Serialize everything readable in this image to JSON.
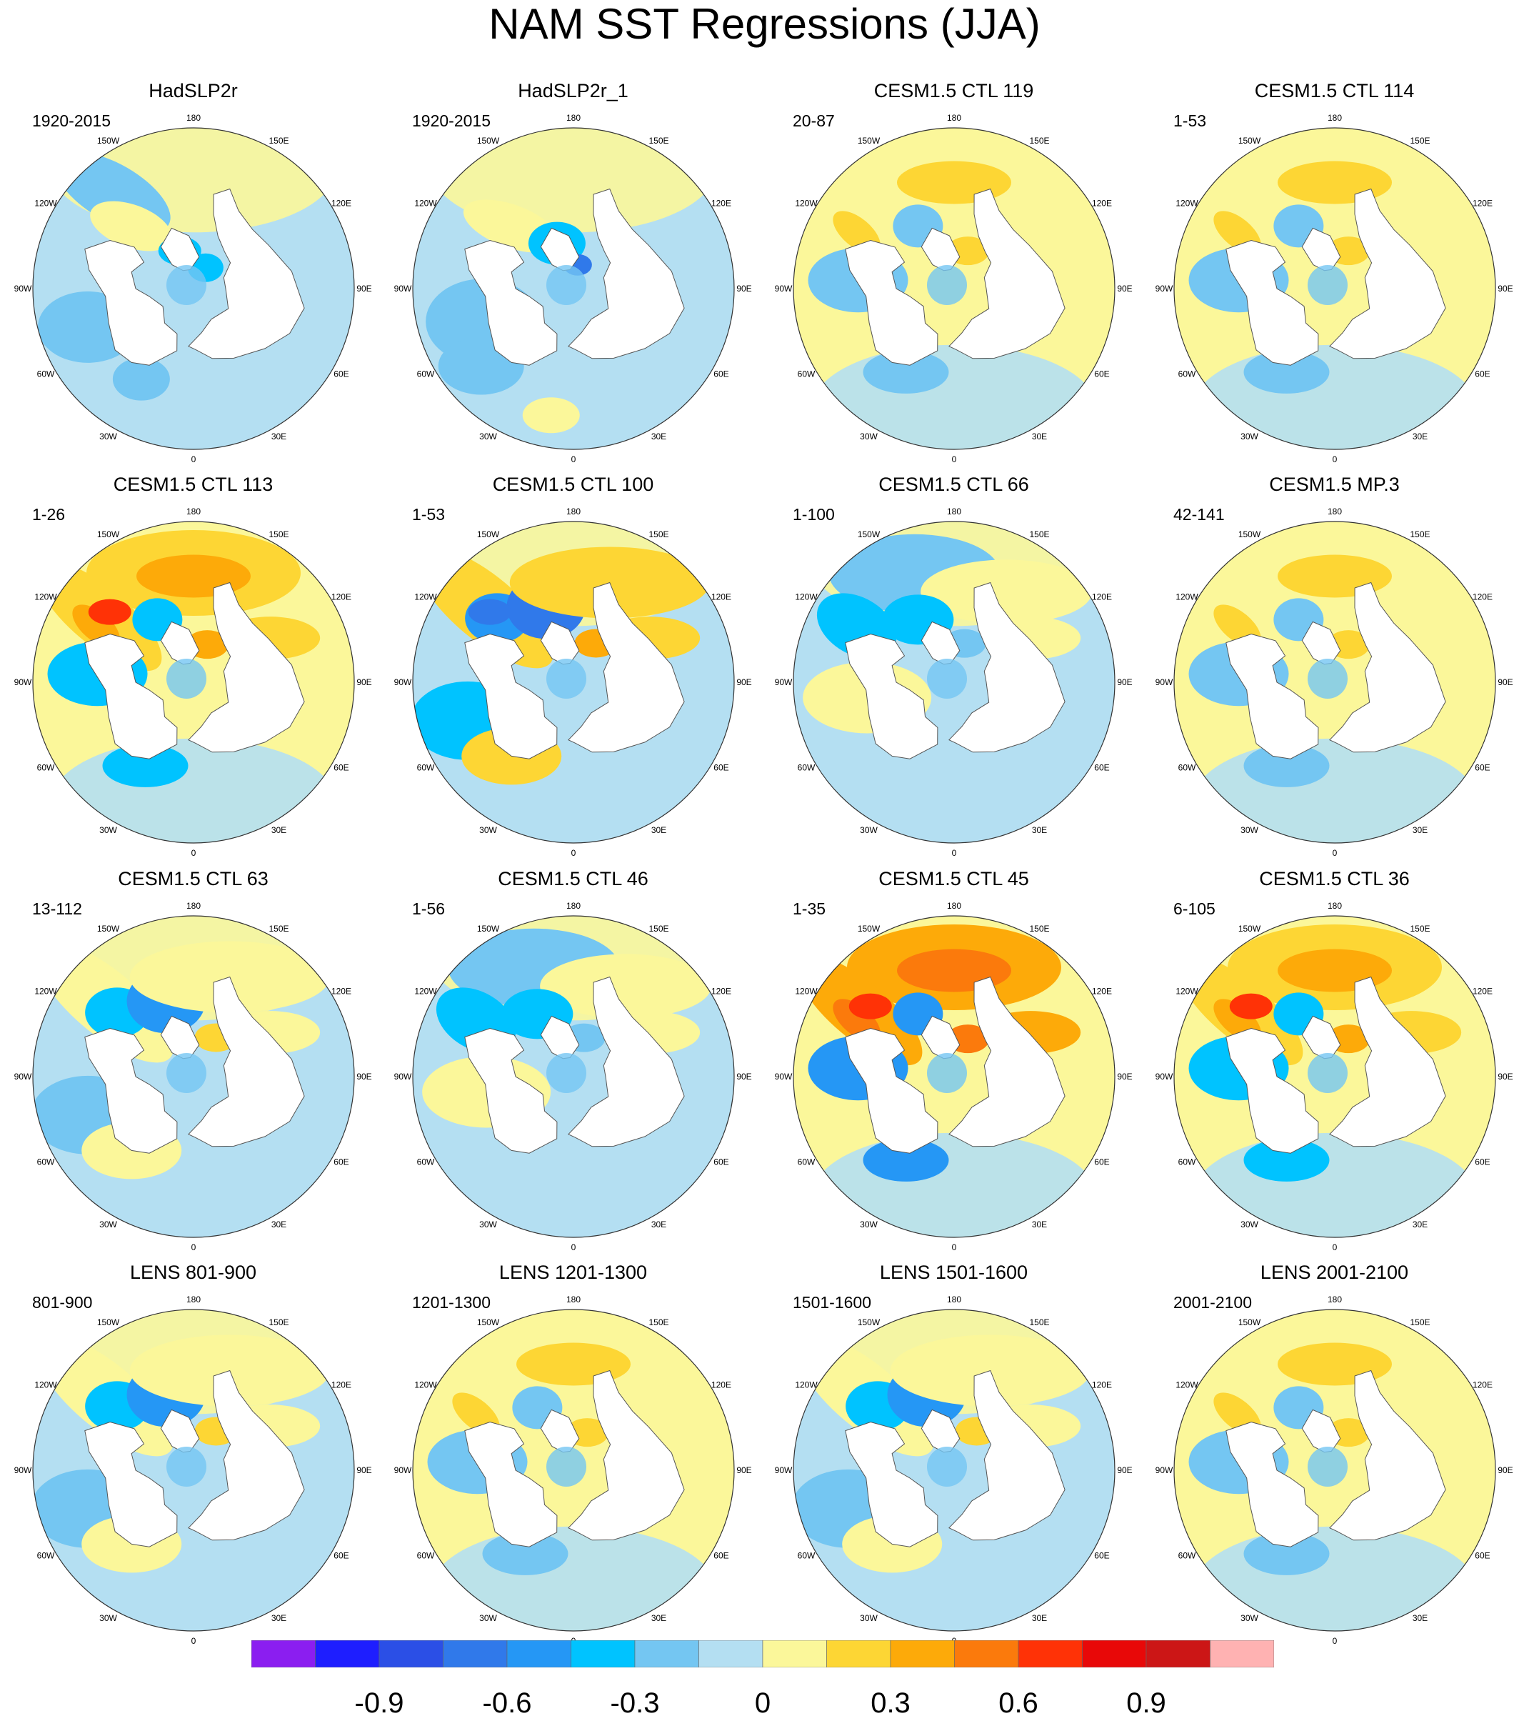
{
  "title": "NAM SST Regressions (JJA)",
  "colorbar": {
    "colors": [
      "#8b1ef0",
      "#1e1eff",
      "#2b4fe6",
      "#3079ea",
      "#2597f5",
      "#00c3ff",
      "#74c6f2",
      "#b4dff2",
      "#fbf79a",
      "#fdd634",
      "#fdaa09",
      "#fb7a0c",
      "#ff3206",
      "#e80808",
      "#cc1616",
      "#ffb2b2"
    ],
    "tick_labels": [
      "-0.9",
      "-0.6",
      "-0.3",
      "0",
      "0.3",
      "0.6",
      "0.9"
    ]
  },
  "longitude_labels": [
    "180",
    "150E",
    "120E",
    "90E",
    "60E",
    "30E",
    "0",
    "30W",
    "60W",
    "90W",
    "120W",
    "150W"
  ],
  "panels": [
    {
      "title": "HadSLP2r",
      "period": "1920-2015",
      "variant": "obs1",
      "intensity": 0.7
    },
    {
      "title": "HadSLP2r_1",
      "period": "1920-2015",
      "variant": "obs2",
      "intensity": 0.8
    },
    {
      "title": "CESM1.5 CTL 119",
      "period": "20-87",
      "variant": "pos",
      "intensity": 1.0
    },
    {
      "title": "CESM1.5 CTL 114",
      "period": "1-53",
      "variant": "pos",
      "intensity": 1.0
    },
    {
      "title": "CESM1.5 CTL 113",
      "period": "1-26",
      "variant": "pos",
      "intensity": 1.5
    },
    {
      "title": "CESM1.5 CTL 100",
      "period": "1-53",
      "variant": "mixed",
      "intensity": 1.4
    },
    {
      "title": "CESM1.5 CTL 66",
      "period": "1-100",
      "variant": "neg",
      "intensity": 0.9
    },
    {
      "title": "CESM1.5 MP.3",
      "period": "42-141",
      "variant": "pos",
      "intensity": 1.2
    },
    {
      "title": "CESM1.5 CTL 63",
      "period": "13-112",
      "variant": "mixed",
      "intensity": 1.0
    },
    {
      "title": "CESM1.5 CTL 46",
      "period": "1-56",
      "variant": "neg",
      "intensity": 1.0
    },
    {
      "title": "CESM1.5 CTL 45",
      "period": "1-35",
      "variant": "pos",
      "intensity": 2.0
    },
    {
      "title": "CESM1.5 CTL 36",
      "period": "6-105",
      "variant": "pos",
      "intensity": 1.4
    },
    {
      "title": "LENS 801-900",
      "period": "801-900",
      "variant": "mixed",
      "intensity": 0.9
    },
    {
      "title": "LENS 1201-1300",
      "period": "1201-1300",
      "variant": "pos",
      "intensity": 1.1
    },
    {
      "title": "LENS 1501-1600",
      "period": "1501-1600",
      "variant": "mixed",
      "intensity": 1.1
    },
    {
      "title": "LENS 2001-2100",
      "period": "2001-2100",
      "variant": "pos",
      "intensity": 1.0
    }
  ]
}
